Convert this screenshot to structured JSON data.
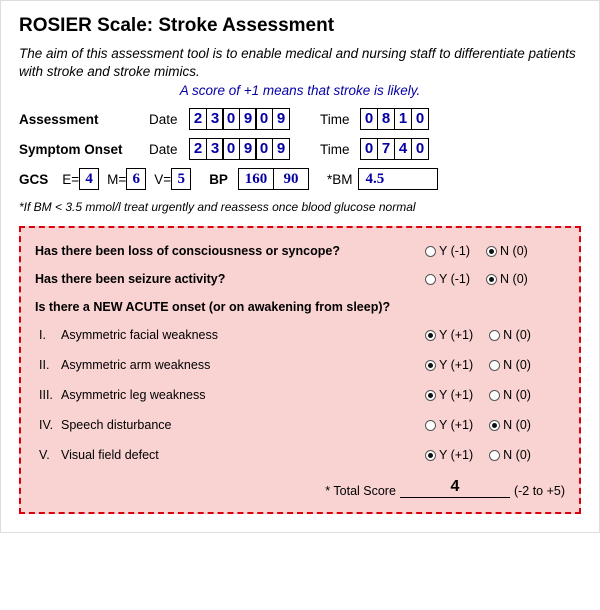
{
  "title": "ROSIER Scale: Stroke Assessment",
  "description": "The aim of this assessment tool is to enable medical and nursing staff to differentiate patients with stroke and stroke mimics.",
  "score_note": "A score of +1 means that stroke is likely.",
  "assessment": {
    "label": "Assessment",
    "date_label": "Date",
    "date_digits": [
      "2",
      "3",
      "0",
      "9",
      "0",
      "9"
    ],
    "time_label": "Time",
    "time_digits": [
      "0",
      "8",
      "1",
      "0"
    ]
  },
  "onset": {
    "label": "Symptom Onset",
    "date_label": "Date",
    "date_digits": [
      "2",
      "3",
      "0",
      "9",
      "0",
      "9"
    ],
    "time_label": "Time",
    "time_digits": [
      "0",
      "7",
      "4",
      "0"
    ]
  },
  "gcs": {
    "label": "GCS",
    "E_label": "E=",
    "E": "4",
    "M_label": "M=",
    "M": "6",
    "V_label": "V=",
    "V": "5"
  },
  "bp": {
    "label": "BP",
    "systolic": "160",
    "diastolic": "90"
  },
  "bm": {
    "label": "*BM",
    "value": "4.5"
  },
  "bm_note": "*If BM < 3.5 mmol/l treat urgently and reassess once blood glucose normal",
  "questions": {
    "q1": {
      "text": "Has there been loss of consciousness or syncope?",
      "y": "Y (-1)",
      "n": "N (0)",
      "selected": "n"
    },
    "q2": {
      "text": "Has there been seizure activity?",
      "y": "Y (-1)",
      "n": "N (0)",
      "selected": "n"
    },
    "header": "Is there a NEW ACUTE onset (or on awakening from sleep)?",
    "items": [
      {
        "rn": "I.",
        "text": "Asymmetric facial weakness",
        "y": "Y (+1)",
        "n": "N (0)",
        "selected": "y"
      },
      {
        "rn": "II.",
        "text": "Asymmetric arm weakness",
        "y": "Y (+1)",
        "n": "N (0)",
        "selected": "y"
      },
      {
        "rn": "III.",
        "text": "Asymmetric leg weakness",
        "y": "Y (+1)",
        "n": "N (0)",
        "selected": "y"
      },
      {
        "rn": "IV.",
        "text": "Speech disturbance",
        "y": "Y (+1)",
        "n": "N (0)",
        "selected": "n"
      },
      {
        "rn": "V.",
        "text": "Visual field defect",
        "y": "Y (+1)",
        "n": "N (0)",
        "selected": "y"
      }
    ]
  },
  "total": {
    "label": "* Total Score",
    "value": "4",
    "range": "(-2 to +5)"
  },
  "colors": {
    "handwriting": "#0500a5",
    "pink_bg": "#f9d2d2",
    "dash_border": "#d9000e"
  }
}
